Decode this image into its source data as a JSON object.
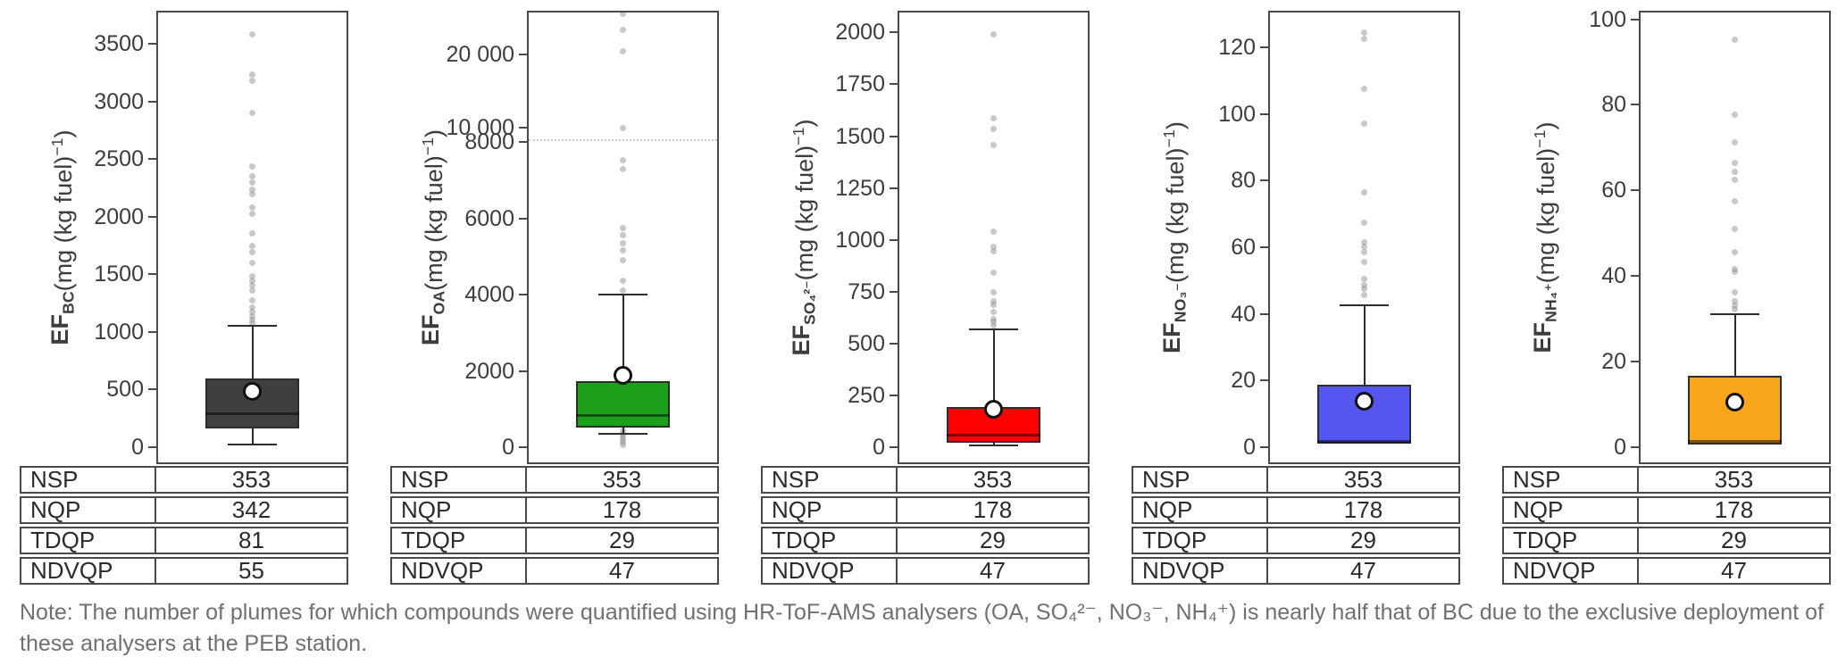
{
  "note": "Note: The number of plumes for which compounds were quantified using HR-ToF-AMS analysers (OA, SO₄²⁻, NO₃⁻, NH₄⁺) is nearly half that of BC due to the exclusive deployment of these analysers at the PEB station.",
  "styles": {
    "axis_color": "#4a4a4a",
    "note_color": "#707070",
    "outlier_color": "rgba(145,145,145,0.5)",
    "mean_marker": "white-circle-black-border"
  },
  "chart_data": [
    {
      "type": "box",
      "id": "bc",
      "ylabel_main": "EF",
      "ylabel_sub": "BC",
      "unit_pre": " (mg (kg fuel)",
      "unit_sup": "−1",
      "unit_post": ")",
      "box_color": "#3F3F3F",
      "scale": {
        "kind": "linear",
        "top_value": 3790,
        "zero_frac": 0.9625
      },
      "ticks": [
        {
          "v": 0,
          "label": "0"
        },
        {
          "v": 500,
          "label": "500"
        },
        {
          "v": 1000,
          "label": "1000"
        },
        {
          "v": 1500,
          "label": "1500"
        },
        {
          "v": 2000,
          "label": "2000"
        },
        {
          "v": 2500,
          "label": "2500"
        },
        {
          "v": 3000,
          "label": "3000"
        },
        {
          "v": 3500,
          "label": "3500"
        }
      ],
      "stats": {
        "whisker_low": 5,
        "q1": 150,
        "median": 280,
        "q3": 590,
        "whisker_high": 1050,
        "mean": 470
      },
      "outliers": [
        3600,
        3250,
        3190,
        2910,
        2440,
        2360,
        2300,
        2240,
        2200,
        2080,
        2030,
        1860,
        1750,
        1690,
        1600,
        1480,
        1440,
        1400,
        1360,
        1270,
        1210,
        1170,
        1130,
        1100,
        1070
      ],
      "counts": [
        {
          "label": "NSP",
          "value": "353"
        },
        {
          "label": "NQP",
          "value": "342"
        },
        {
          "label": "TDQP",
          "value": "81"
        },
        {
          "label": "NDVQP",
          "value": "55"
        }
      ]
    },
    {
      "type": "box",
      "id": "oa",
      "ylabel_main": "EF",
      "ylabel_sub": "OA",
      "unit_pre": " (mg (kg fuel)",
      "unit_sup": "−1",
      "unit_post": ")",
      "box_color": "#1CA01C",
      "scale": {
        "kind": "broken",
        "break_value": 8000,
        "break_frac": 0.29,
        "top_value": 25900,
        "zero_frac": 0.9625
      },
      "ticks": [
        {
          "v": 0,
          "label": "0"
        },
        {
          "v": 2000,
          "label": "2000"
        },
        {
          "v": 4000,
          "label": "4000"
        },
        {
          "v": 6000,
          "label": "6000"
        },
        {
          "v": 8000,
          "label": "8000"
        },
        {
          "v": 10000,
          "label": "10 000"
        },
        {
          "v": 20000,
          "label": "20 000"
        }
      ],
      "stats": {
        "whisker_low": 310,
        "q1": 470,
        "median": 800,
        "q3": 1700,
        "whisker_high": 4000,
        "mean": 1850
      },
      "outliers": [
        25700,
        23500,
        20600,
        10000,
        7550,
        7300,
        5750,
        5550,
        5350,
        5150,
        4900,
        4350,
        4100,
        400,
        300,
        220,
        150,
        80,
        20
      ],
      "counts": [
        {
          "label": "NSP",
          "value": "353"
        },
        {
          "label": "NQP",
          "value": "178"
        },
        {
          "label": "TDQP",
          "value": "29"
        },
        {
          "label": "NDVQP",
          "value": "47"
        }
      ]
    },
    {
      "type": "box",
      "id": "so4",
      "ylabel_main": "EF",
      "ylabel_sub": "SO₄²⁻",
      "unit_pre": " (mg (kg fuel)",
      "unit_sup": "−1",
      "unit_post": ")",
      "box_color": "#FF0000",
      "scale": {
        "kind": "linear",
        "top_value": 2105,
        "zero_frac": 0.9625
      },
      "ticks": [
        {
          "v": 0,
          "label": "0"
        },
        {
          "v": 250,
          "label": "250"
        },
        {
          "v": 500,
          "label": "500"
        },
        {
          "v": 750,
          "label": "750"
        },
        {
          "v": 1000,
          "label": "1000"
        },
        {
          "v": 1250,
          "label": "1250"
        },
        {
          "v": 1500,
          "label": "1500"
        },
        {
          "v": 1750,
          "label": "1750"
        },
        {
          "v": 2000,
          "label": "2000"
        }
      ],
      "stats": {
        "whisker_low": 0,
        "q1": 15,
        "median": 50,
        "q3": 185,
        "whisker_high": 565,
        "mean": 175
      },
      "outliers": [
        2000,
        1590,
        1540,
        1460,
        1040,
        965,
        945,
        840,
        745,
        700,
        685,
        650,
        615,
        600,
        585
      ],
      "counts": [
        {
          "label": "NSP",
          "value": "353"
        },
        {
          "label": "NQP",
          "value": "178"
        },
        {
          "label": "TDQP",
          "value": "29"
        },
        {
          "label": "NDVQP",
          "value": "47"
        }
      ]
    },
    {
      "type": "box",
      "id": "no3",
      "ylabel_main": "EF",
      "ylabel_sub": "NO₃⁻",
      "unit_pre": " (mg (kg fuel)",
      "unit_sup": "−1",
      "unit_post": ")",
      "box_color": "#5456EF",
      "scale": {
        "kind": "linear",
        "top_value": 131,
        "zero_frac": 0.9625
      },
      "ticks": [
        {
          "v": 0,
          "label": "0"
        },
        {
          "v": 20,
          "label": "20"
        },
        {
          "v": 40,
          "label": "40"
        },
        {
          "v": 60,
          "label": "60"
        },
        {
          "v": 80,
          "label": "80"
        },
        {
          "v": 100,
          "label": "100"
        },
        {
          "v": 120,
          "label": "120"
        }
      ],
      "stats": {
        "whisker_low": 0.5,
        "q1": 0.5,
        "median": 1.2,
        "q3": 18.5,
        "whisker_high": 42.5,
        "mean": 13.5
      },
      "outliers": [
        125,
        123,
        108,
        97.5,
        76.5,
        67.5,
        61.5,
        60,
        58.5,
        55.5,
        50.5,
        48.5,
        47.5,
        45.5
      ],
      "counts": [
        {
          "label": "NSP",
          "value": "353"
        },
        {
          "label": "NQP",
          "value": "178"
        },
        {
          "label": "TDQP",
          "value": "29"
        },
        {
          "label": "NDVQP",
          "value": "47"
        }
      ]
    },
    {
      "type": "box",
      "id": "nh4",
      "ylabel_main": "EF",
      "ylabel_sub": "NH₄⁺",
      "unit_pre": " (mg (kg fuel)",
      "unit_sup": "−1",
      "unit_post": ")",
      "box_color": "#F7A61B",
      "scale": {
        "kind": "linear",
        "top_value": 102,
        "zero_frac": 0.9625
      },
      "ticks": [
        {
          "v": 0,
          "label": "0"
        },
        {
          "v": 20,
          "label": "20"
        },
        {
          "v": 40,
          "label": "40"
        },
        {
          "v": 60,
          "label": "60"
        },
        {
          "v": 80,
          "label": "80"
        },
        {
          "v": 100,
          "label": "100"
        }
      ],
      "stats": {
        "whisker_low": 0.3,
        "q1": 0.3,
        "median": 0.9,
        "q3": 16.5,
        "whisker_high": 31,
        "mean": 10.3
      },
      "outliers": [
        95.5,
        78,
        71.5,
        66.5,
        64.5,
        62.5,
        57.5,
        51,
        45.5,
        41.5,
        41,
        36,
        34,
        33,
        32
      ],
      "counts": [
        {
          "label": "NSP",
          "value": "353"
        },
        {
          "label": "NQP",
          "value": "178"
        },
        {
          "label": "TDQP",
          "value": "29"
        },
        {
          "label": "NDVQP",
          "value": "47"
        }
      ]
    }
  ]
}
